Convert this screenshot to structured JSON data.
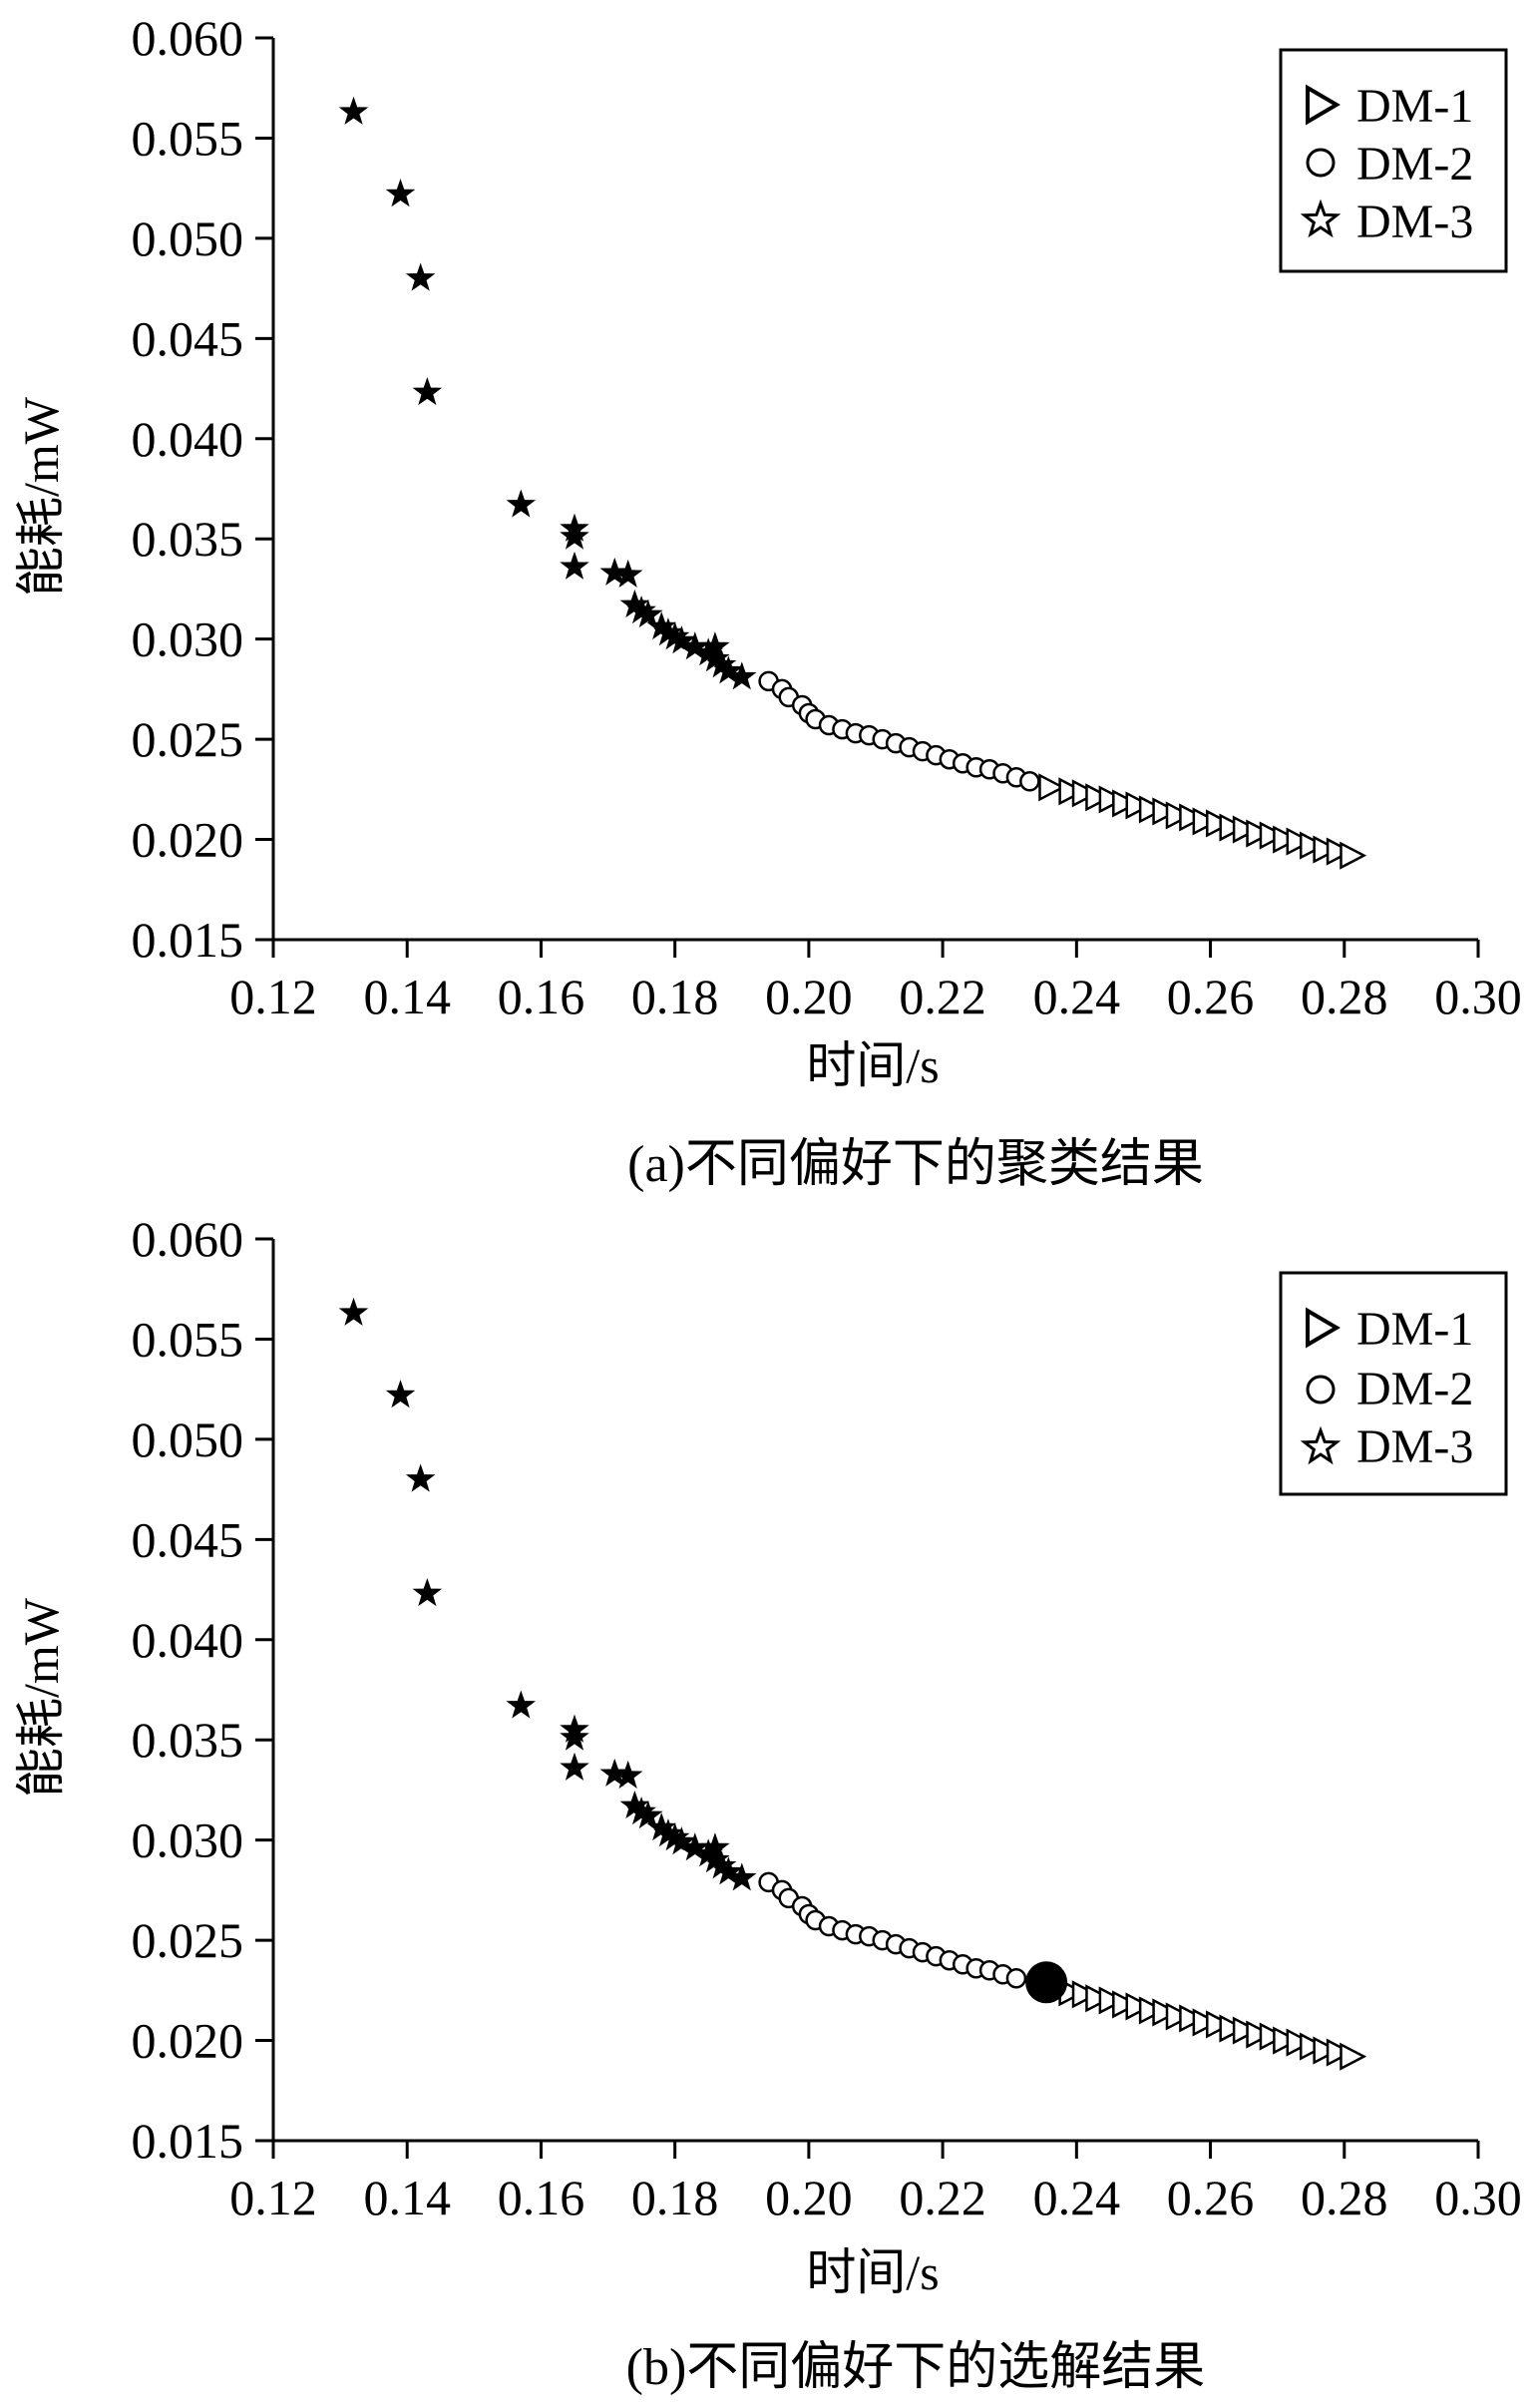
{
  "chart_data": [
    {
      "type": "scatter",
      "caption": "(a)不同偏好下的聚类结果",
      "xlabel": "时间/s",
      "ylabel": "能耗/mW",
      "xlim": [
        0.12,
        0.3
      ],
      "ylim": [
        0.015,
        0.06
      ],
      "xticks": [
        "0.12",
        "0.14",
        "0.16",
        "0.18",
        "0.20",
        "0.22",
        "0.24",
        "0.26",
        "0.28",
        "0.30"
      ],
      "yticks": [
        "0.015",
        "0.020",
        "0.025",
        "0.030",
        "0.035",
        "0.040",
        "0.045",
        "0.050",
        "0.055",
        "0.060"
      ],
      "legend_position": "top-right",
      "series": [
        {
          "name": "DM-1",
          "marker": "triangle-right",
          "points": [
            [
              0.236,
              0.0226
            ],
            [
              0.239,
              0.0224
            ],
            [
              0.241,
              0.0223
            ],
            [
              0.243,
              0.0221
            ],
            [
              0.245,
              0.022
            ],
            [
              0.247,
              0.0218
            ],
            [
              0.249,
              0.0217
            ],
            [
              0.251,
              0.0215
            ],
            [
              0.253,
              0.0214
            ],
            [
              0.255,
              0.0212
            ],
            [
              0.257,
              0.0211
            ],
            [
              0.259,
              0.0209
            ],
            [
              0.261,
              0.0208
            ],
            [
              0.263,
              0.0206
            ],
            [
              0.265,
              0.0205
            ],
            [
              0.267,
              0.0203
            ],
            [
              0.269,
              0.0202
            ],
            [
              0.271,
              0.02
            ],
            [
              0.273,
              0.0199
            ],
            [
              0.275,
              0.0197
            ],
            [
              0.277,
              0.0195
            ],
            [
              0.279,
              0.0194
            ],
            [
              0.281,
              0.0192
            ]
          ]
        },
        {
          "name": "DM-2",
          "marker": "circle",
          "points": [
            [
              0.194,
              0.0279
            ],
            [
              0.196,
              0.0275
            ],
            [
              0.197,
              0.0271
            ],
            [
              0.199,
              0.0267
            ],
            [
              0.2,
              0.0263
            ],
            [
              0.201,
              0.026
            ],
            [
              0.203,
              0.0257
            ],
            [
              0.205,
              0.0255
            ],
            [
              0.207,
              0.0253
            ],
            [
              0.209,
              0.0252
            ],
            [
              0.211,
              0.025
            ],
            [
              0.213,
              0.0248
            ],
            [
              0.215,
              0.0246
            ],
            [
              0.217,
              0.0244
            ],
            [
              0.219,
              0.0242
            ],
            [
              0.221,
              0.024
            ],
            [
              0.223,
              0.0238
            ],
            [
              0.225,
              0.0236
            ],
            [
              0.227,
              0.0235
            ],
            [
              0.229,
              0.0233
            ],
            [
              0.231,
              0.0231
            ],
            [
              0.233,
              0.0229
            ]
          ]
        },
        {
          "name": "DM-3",
          "marker": "star",
          "points": [
            [
              0.132,
              0.0563
            ],
            [
              0.139,
              0.0522
            ],
            [
              0.142,
              0.048
            ],
            [
              0.143,
              0.0423
            ],
            [
              0.157,
              0.0367
            ],
            [
              0.165,
              0.0355
            ],
            [
              0.165,
              0.0351
            ],
            [
              0.165,
              0.0336
            ],
            [
              0.171,
              0.0333
            ],
            [
              0.173,
              0.0332
            ],
            [
              0.174,
              0.0317
            ],
            [
              0.175,
              0.0314
            ],
            [
              0.176,
              0.0312
            ],
            [
              0.178,
              0.0306
            ],
            [
              0.179,
              0.0303
            ],
            [
              0.18,
              0.0301
            ],
            [
              0.181,
              0.0299
            ],
            [
              0.183,
              0.0296
            ],
            [
              0.185,
              0.0293
            ],
            [
              0.186,
              0.029
            ],
            [
              0.186,
              0.0296
            ],
            [
              0.187,
              0.0287
            ],
            [
              0.188,
              0.0284
            ],
            [
              0.19,
              0.0281
            ]
          ]
        }
      ]
    },
    {
      "type": "scatter",
      "caption": "(b)不同偏好下的选解结果",
      "xlabel": "时间/s",
      "ylabel": "能耗/mW",
      "xlim": [
        0.12,
        0.3
      ],
      "ylim": [
        0.015,
        0.06
      ],
      "xticks": [
        "0.12",
        "0.14",
        "0.16",
        "0.18",
        "0.20",
        "0.22",
        "0.24",
        "0.26",
        "0.28",
        "0.30"
      ],
      "yticks": [
        "0.015",
        "0.020",
        "0.025",
        "0.030",
        "0.035",
        "0.040",
        "0.045",
        "0.050",
        "0.055",
        "0.060"
      ],
      "legend_position": "top-right",
      "highlight_point": [
        0.2355,
        0.0229
      ],
      "series": [
        {
          "name": "DM-1",
          "marker": "triangle-right",
          "points": [
            [
              0.239,
              0.0224
            ],
            [
              0.241,
              0.0223
            ],
            [
              0.243,
              0.0221
            ],
            [
              0.245,
              0.022
            ],
            [
              0.247,
              0.0218
            ],
            [
              0.249,
              0.0217
            ],
            [
              0.251,
              0.0215
            ],
            [
              0.253,
              0.0214
            ],
            [
              0.255,
              0.0212
            ],
            [
              0.257,
              0.0211
            ],
            [
              0.259,
              0.0209
            ],
            [
              0.261,
              0.0208
            ],
            [
              0.263,
              0.0206
            ],
            [
              0.265,
              0.0205
            ],
            [
              0.267,
              0.0203
            ],
            [
              0.269,
              0.0202
            ],
            [
              0.271,
              0.02
            ],
            [
              0.273,
              0.0199
            ],
            [
              0.275,
              0.0197
            ],
            [
              0.277,
              0.0195
            ],
            [
              0.279,
              0.0194
            ],
            [
              0.281,
              0.0192
            ]
          ]
        },
        {
          "name": "DM-2",
          "marker": "circle",
          "points": [
            [
              0.194,
              0.0279
            ],
            [
              0.196,
              0.0275
            ],
            [
              0.197,
              0.0271
            ],
            [
              0.199,
              0.0267
            ],
            [
              0.2,
              0.0263
            ],
            [
              0.201,
              0.026
            ],
            [
              0.203,
              0.0257
            ],
            [
              0.205,
              0.0255
            ],
            [
              0.207,
              0.0253
            ],
            [
              0.209,
              0.0252
            ],
            [
              0.211,
              0.025
            ],
            [
              0.213,
              0.0248
            ],
            [
              0.215,
              0.0246
            ],
            [
              0.217,
              0.0244
            ],
            [
              0.219,
              0.0242
            ],
            [
              0.221,
              0.024
            ],
            [
              0.223,
              0.0238
            ],
            [
              0.225,
              0.0236
            ],
            [
              0.227,
              0.0235
            ],
            [
              0.229,
              0.0233
            ],
            [
              0.231,
              0.0231
            ]
          ]
        },
        {
          "name": "DM-3",
          "marker": "star",
          "points": [
            [
              0.132,
              0.0563
            ],
            [
              0.139,
              0.0522
            ],
            [
              0.142,
              0.048
            ],
            [
              0.143,
              0.0423
            ],
            [
              0.157,
              0.0367
            ],
            [
              0.165,
              0.0355
            ],
            [
              0.165,
              0.0351
            ],
            [
              0.165,
              0.0336
            ],
            [
              0.171,
              0.0333
            ],
            [
              0.173,
              0.0332
            ],
            [
              0.174,
              0.0317
            ],
            [
              0.175,
              0.0314
            ],
            [
              0.176,
              0.0312
            ],
            [
              0.178,
              0.0306
            ],
            [
              0.179,
              0.0303
            ],
            [
              0.18,
              0.0301
            ],
            [
              0.181,
              0.0299
            ],
            [
              0.183,
              0.0296
            ],
            [
              0.185,
              0.0293
            ],
            [
              0.186,
              0.029
            ],
            [
              0.186,
              0.0296
            ],
            [
              0.187,
              0.0287
            ],
            [
              0.188,
              0.0284
            ],
            [
              0.19,
              0.0281
            ]
          ]
        }
      ]
    }
  ]
}
